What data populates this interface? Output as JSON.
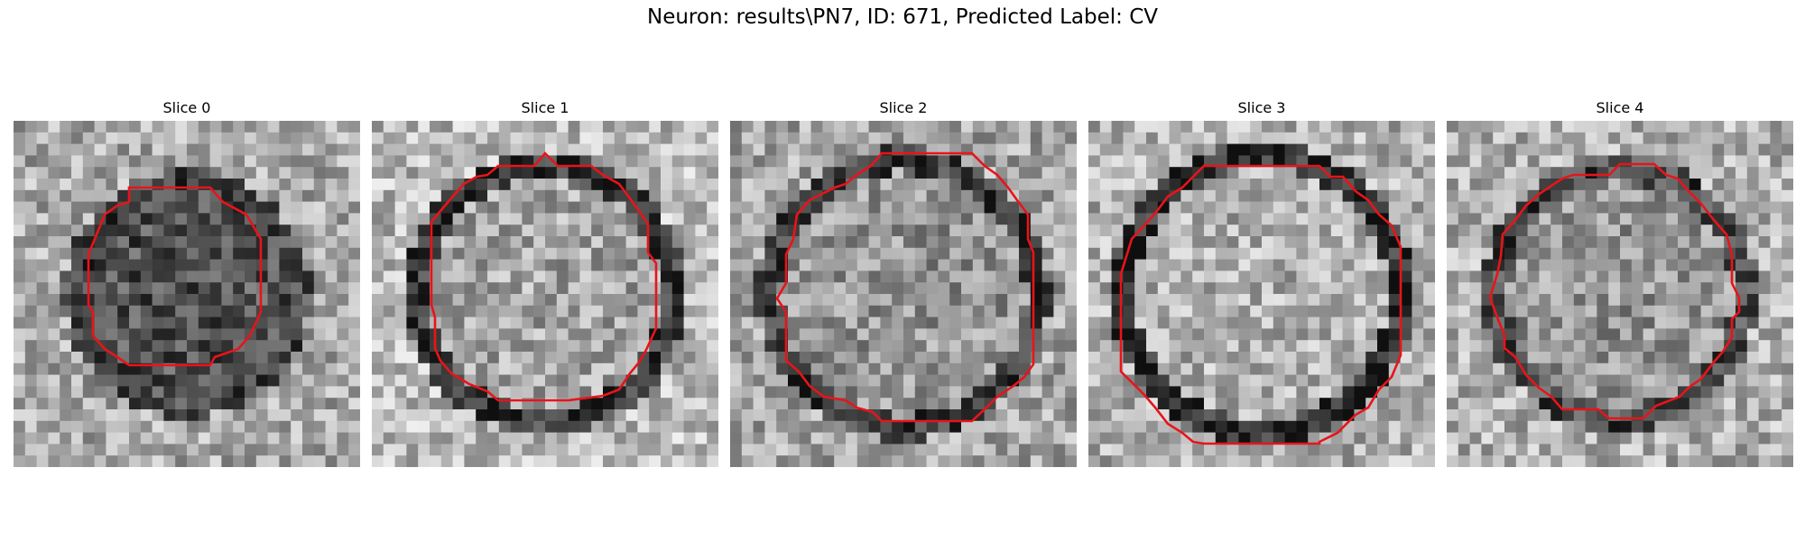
{
  "figure": {
    "title": "Neuron: results\\PN7, ID: 671, Predicted Label: CV"
  },
  "slices": [
    {
      "title": "Slice 0",
      "outline_color": "#e8141a"
    },
    {
      "title": "Slice 1",
      "outline_color": "#e8141a"
    },
    {
      "title": "Slice 2",
      "outline_color": "#e8141a"
    },
    {
      "title": "Slice 3",
      "outline_color": "#e8141a"
    },
    {
      "title": "Slice 4",
      "outline_color": "#e8141a"
    }
  ]
}
